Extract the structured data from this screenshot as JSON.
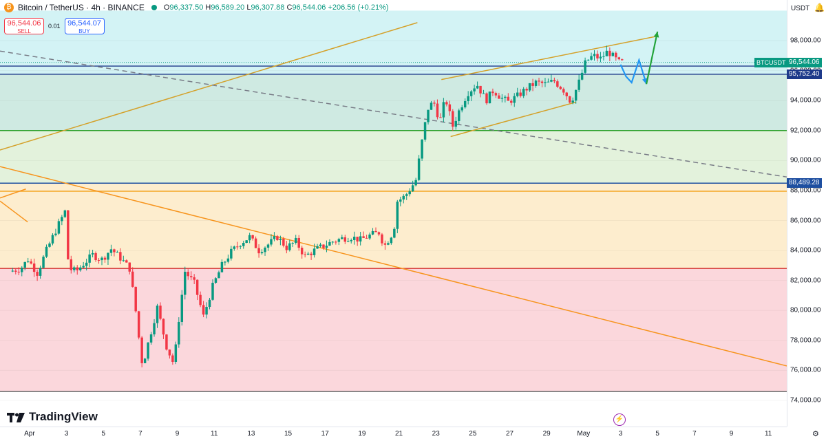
{
  "header": {
    "symbol_title": "Bitcoin / TetherUS · 4h · BINANCE",
    "ohlc": {
      "open_label": "O",
      "open": "96,337.50",
      "high_label": "H",
      "high": "96,589.20",
      "low_label": "L",
      "low": "96,307.88",
      "close_label": "C",
      "close": "96,544.06",
      "change": "+206.56 (+0.21%)"
    }
  },
  "trade": {
    "sell_price": "96,544.06",
    "sell_label": "SELL",
    "spread": "0.01",
    "buy_price": "96,544.07",
    "buy_label": "BUY"
  },
  "price_scale": {
    "currency": "USDT"
  },
  "branding": {
    "logo_text": "TradingView"
  },
  "icons": {
    "coin": "bitcoin-icon",
    "bell": "alert-icon",
    "flash": "lightning-icon",
    "settings": "gear-icon"
  },
  "colors": {
    "up": "#089981",
    "down": "#f23645",
    "zone_cyan": "#d3f3f5",
    "zone_teal": "#cfeae2",
    "zone_green": "#e3f2dc",
    "zone_yellow": "#fdedce",
    "zone_pink": "#fbd7dc",
    "gold_line": "#d4a12a",
    "orange_line": "#f7941d"
  },
  "chart_data": {
    "type": "candlestick",
    "symbol": "BTCUSDT",
    "timeframe": "4h",
    "ylim": [
      73000,
      100000
    ],
    "y_ticks": [
      74000,
      76000,
      78000,
      80000,
      82000,
      84000,
      86000,
      88000,
      90000,
      92000,
      94000,
      96000,
      98000
    ],
    "y_tick_labels": [
      "74,000.00",
      "76,000.00",
      "78,000.00",
      "80,000.00",
      "82,000.00",
      "84,000.00",
      "86,000.00",
      "88,000.00",
      "90,000.00",
      "92,000.00",
      "94,000.00",
      "96,000.00",
      "98,000.00"
    ],
    "x_ticks": [
      {
        "label": "Apr",
        "day": 1
      },
      {
        "label": "3",
        "day": 3
      },
      {
        "label": "5",
        "day": 5
      },
      {
        "label": "7",
        "day": 7
      },
      {
        "label": "9",
        "day": 9
      },
      {
        "label": "11",
        "day": 11
      },
      {
        "label": "13",
        "day": 13
      },
      {
        "label": "15",
        "day": 15
      },
      {
        "label": "17",
        "day": 17
      },
      {
        "label": "19",
        "day": 19
      },
      {
        "label": "21",
        "day": 21
      },
      {
        "label": "23",
        "day": 23
      },
      {
        "label": "25",
        "day": 25
      },
      {
        "label": "27",
        "day": 27
      },
      {
        "label": "29",
        "day": 29
      },
      {
        "label": "May",
        "day": 31
      },
      {
        "label": "3",
        "day": 33
      },
      {
        "label": "5",
        "day": 35
      },
      {
        "label": "7",
        "day": 37
      },
      {
        "label": "9",
        "day": 39
      },
      {
        "label": "11",
        "day": 41
      }
    ],
    "x_range_days": [
      -0.6,
      42.0
    ],
    "price_path": [
      [
        0,
        82600
      ],
      [
        0.6,
        82800
      ],
      [
        1.0,
        83400
      ],
      [
        1.5,
        82500
      ],
      [
        2.0,
        84000
      ],
      [
        2.6,
        85600
      ],
      [
        3.0,
        86600
      ],
      [
        3.2,
        82800
      ],
      [
        3.6,
        82600
      ],
      [
        4.0,
        83100
      ],
      [
        4.5,
        83700
      ],
      [
        5.0,
        83400
      ],
      [
        5.5,
        84100
      ],
      [
        6.0,
        83500
      ],
      [
        6.5,
        82800
      ],
      [
        6.8,
        80300
      ],
      [
        7.0,
        78200
      ],
      [
        7.2,
        76300
      ],
      [
        7.5,
        77800
      ],
      [
        8.0,
        80200
      ],
      [
        8.5,
        77600
      ],
      [
        8.9,
        76400
      ],
      [
        9.2,
        79800
      ],
      [
        9.5,
        82600
      ],
      [
        10.0,
        81800
      ],
      [
        10.5,
        79600
      ],
      [
        11.0,
        81600
      ],
      [
        11.5,
        83000
      ],
      [
        12.0,
        83900
      ],
      [
        12.5,
        84500
      ],
      [
        13.0,
        84900
      ],
      [
        13.5,
        84000
      ],
      [
        14.0,
        84400
      ],
      [
        14.5,
        84900
      ],
      [
        15.0,
        84200
      ],
      [
        15.5,
        84600
      ],
      [
        16.0,
        83600
      ],
      [
        16.5,
        84000
      ],
      [
        17.0,
        84300
      ],
      [
        17.5,
        84600
      ],
      [
        18.0,
        84800
      ],
      [
        18.5,
        84900
      ],
      [
        19.0,
        84700
      ],
      [
        19.5,
        85000
      ],
      [
        20.0,
        85200
      ],
      [
        20.3,
        84300
      ],
      [
        20.8,
        85300
      ],
      [
        21.0,
        87300
      ],
      [
        21.4,
        87600
      ],
      [
        21.8,
        88300
      ],
      [
        22.0,
        88700
      ],
      [
        22.4,
        91800
      ],
      [
        22.7,
        93700
      ],
      [
        23.0,
        93800
      ],
      [
        23.3,
        92600
      ],
      [
        23.6,
        94200
      ],
      [
        24.0,
        92300
      ],
      [
        24.4,
        93500
      ],
      [
        24.8,
        94500
      ],
      [
        25.3,
        95100
      ],
      [
        25.8,
        94000
      ],
      [
        26.2,
        94700
      ],
      [
        26.6,
        94200
      ],
      [
        27.0,
        93900
      ],
      [
        27.5,
        94300
      ],
      [
        28.0,
        94800
      ],
      [
        28.5,
        95200
      ],
      [
        29.0,
        95100
      ],
      [
        29.5,
        95300
      ],
      [
        30.0,
        94700
      ],
      [
        30.4,
        93900
      ],
      [
        30.8,
        95100
      ],
      [
        31.2,
        96600
      ],
      [
        31.6,
        97000
      ],
      [
        32.0,
        96800
      ],
      [
        32.4,
        97300
      ],
      [
        32.7,
        96900
      ],
      [
        33.0,
        96544
      ]
    ],
    "horizontal_levels": [
      {
        "price": 96544.06,
        "label": "96,544.06",
        "kind": "last-price"
      },
      {
        "price": 96300,
        "label": "",
        "kind": "level"
      },
      {
        "price": 95752.4,
        "label": "95,752.40",
        "kind": "level"
      },
      {
        "price": 92000,
        "label": "",
        "kind": "level"
      },
      {
        "price": 88489.28,
        "label": "88,489.28",
        "kind": "level"
      },
      {
        "price": 87950,
        "label": "",
        "kind": "level"
      },
      {
        "price": 82800,
        "label": "",
        "kind": "level"
      },
      {
        "price": 74600,
        "label": "",
        "kind": "level"
      }
    ],
    "zones": [
      {
        "from": 95752.4,
        "to": 100000,
        "color": "zone_cyan"
      },
      {
        "from": 92000,
        "to": 95752.4,
        "color": "zone_teal"
      },
      {
        "from": 88489.28,
        "to": 92000,
        "color": "zone_green"
      },
      {
        "from": 82800,
        "to": 88489.28,
        "color": "zone_yellow"
      },
      {
        "from": 74600,
        "to": 82800,
        "color": "zone_pink"
      }
    ],
    "trend_lines": [
      {
        "from": [
          -0.6,
          90700
        ],
        "to": [
          22.0,
          99200
        ],
        "color": "gold_line",
        "style": "solid"
      },
      {
        "from": [
          -0.6,
          97300
        ],
        "to": [
          42.0,
          88900
        ],
        "color": "#787b86",
        "style": "dashed"
      },
      {
        "from": [
          -0.6,
          89600
        ],
        "to": [
          42.0,
          76300
        ],
        "color": "orange_line",
        "style": "solid"
      },
      {
        "from": [
          -0.6,
          87500
        ],
        "to": [
          0.8,
          88100
        ],
        "color": "orange_line",
        "style": "solid"
      },
      {
        "from": [
          -0.6,
          87300
        ],
        "to": [
          0.9,
          85900
        ],
        "color": "orange_line",
        "style": "solid"
      },
      {
        "from": [
          23.3,
          95400
        ],
        "to": [
          35.0,
          98300
        ],
        "color": "gold_line",
        "style": "solid"
      },
      {
        "from": [
          23.8,
          91600
        ],
        "to": [
          30.6,
          93900
        ],
        "color": "gold_line",
        "style": "solid"
      }
    ],
    "projection_arrows": [
      {
        "points": [
          [
            33.0,
            96400
          ],
          [
            33.3,
            95600
          ],
          [
            33.6,
            95200
          ],
          [
            34.0,
            96700
          ],
          [
            34.4,
            95100
          ]
        ],
        "color": "#2196f3"
      },
      {
        "points": [
          [
            34.4,
            95100
          ],
          [
            35.0,
            98600
          ]
        ],
        "color": "#22a33a"
      }
    ]
  }
}
